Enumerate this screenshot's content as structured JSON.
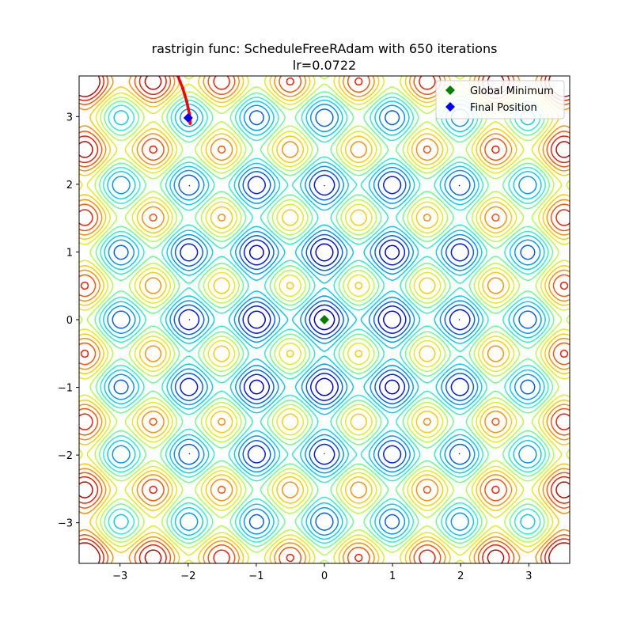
{
  "chart_data": {
    "type": "contour",
    "function": "rastrigin",
    "title_line1": "rastrigin func: ScheduleFreeRAdam with 650 iterations",
    "title_line2": "lr=0.0722",
    "xlabel": "",
    "ylabel": "",
    "xlim": [
      -3.6,
      3.6
    ],
    "ylim": [
      -3.6,
      3.6
    ],
    "xticks": [
      -3,
      -2,
      -1,
      0,
      1,
      2,
      3
    ],
    "yticks": [
      -3,
      -2,
      -1,
      0,
      1,
      2,
      3
    ],
    "grid": false,
    "contour_levels": [
      4,
      8,
      12,
      16,
      20,
      24,
      28,
      32,
      36,
      40,
      44,
      48,
      52,
      56
    ],
    "colormap": [
      "#00008f",
      "#0000ff",
      "#0070ff",
      "#00c8ff",
      "#40ffb8",
      "#b8ff40",
      "#ffe000",
      "#ff8000",
      "#ff2000",
      "#9f0000"
    ],
    "color_min": 0,
    "color_max": 58,
    "global_minimum": {
      "x": 0,
      "y": 0,
      "color": "#008000",
      "label": "Global Minimum"
    },
    "final_position": {
      "x": -2.0,
      "y": 2.98,
      "color": "#0000ff",
      "label": "Final Position"
    },
    "trajectory": {
      "color": "#ff0000",
      "points": [
        [
          -2.15,
          3.6
        ],
        [
          -2.12,
          3.52
        ],
        [
          -2.08,
          3.42
        ],
        [
          -2.05,
          3.32
        ],
        [
          -2.02,
          3.22
        ],
        [
          -2.0,
          3.12
        ],
        [
          -1.98,
          3.04
        ],
        [
          -1.97,
          2.96
        ],
        [
          -1.97,
          2.9
        ],
        [
          -1.98,
          2.95
        ],
        [
          -2.0,
          2.98
        ]
      ]
    },
    "legend_position": "top-right"
  }
}
